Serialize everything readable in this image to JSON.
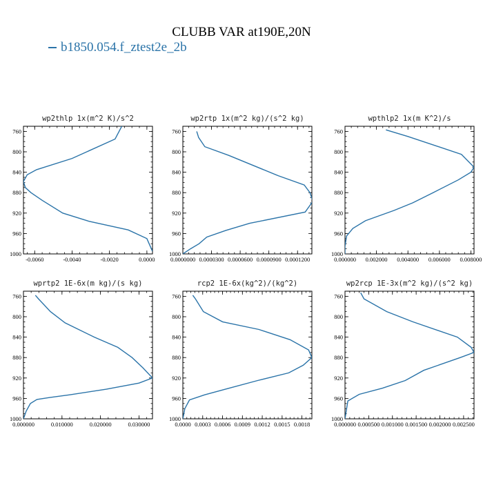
{
  "title": "CLUBB VAR at190E,20N",
  "legend": {
    "name": "b1850.054.f_ztest2e_2b",
    "color": "#2a73a8"
  },
  "chart_data": [
    {
      "type": "line",
      "title": "wp2thlp  1x(m^2 K)/s^2",
      "xlim": [
        -0.0066,
        0.0003
      ],
      "ylim": [
        750,
        1000
      ],
      "y_inverted": true,
      "xticks": [
        -0.006,
        -0.004,
        -0.002,
        0.0
      ],
      "xtick_labels": [
        "-0.0060",
        "-0.0040",
        "-0.0020",
        "0.0000"
      ],
      "yticks": [
        760,
        800,
        840,
        880,
        920,
        960,
        1000
      ],
      "x": [
        -0.0013,
        -0.0017,
        -0.004,
        -0.0059,
        -0.0064,
        -0.0066,
        -0.0065,
        -0.0062,
        -0.0056,
        -0.0045,
        -0.0031,
        -0.001,
        0.0,
        0.0003
      ],
      "y": [
        747,
        775,
        813,
        835,
        845,
        858,
        870,
        880,
        895,
        920,
        936,
        953,
        970,
        995
      ]
    },
    {
      "type": "line",
      "title": "wp2rtp  1x(m^2 kg)/(s^2 kg)",
      "xlim": [
        0.0,
        0.000135
      ],
      "ylim": [
        750,
        1000
      ],
      "y_inverted": true,
      "xticks": [
        0.0,
        3e-05,
        6e-05,
        9e-05,
        0.00012
      ],
      "xtick_labels": [
        "0.0000000",
        "0.0000300",
        "0.0000600",
        "0.0000900",
        "0.0001200"
      ],
      "yticks": [
        760,
        800,
        840,
        880,
        920,
        960,
        1000
      ],
      "x": [
        1.45e-05,
        1.65e-05,
        2.3e-05,
        4.8e-05,
        0.0001,
        0.000127,
        0.000133,
        0.000136,
        0.000128,
        7e-05,
        4.5e-05,
        2.5e-05,
        1.7e-05,
        8e-06,
        0.0
      ],
      "y": [
        760,
        772,
        790,
        807,
        847,
        865,
        880,
        897,
        918,
        940,
        954,
        967,
        980,
        990,
        1000
      ]
    },
    {
      "type": "line",
      "title": "wpthlp2  1x(m K^2)/s",
      "xlim": [
        0.0,
        0.0082
      ],
      "ylim": [
        750,
        1000
      ],
      "y_inverted": true,
      "xticks": [
        0.0,
        0.002,
        0.004,
        0.006,
        0.008
      ],
      "xtick_labels": [
        "0.000000",
        "0.002000",
        "0.004000",
        "0.006000",
        "0.008000"
      ],
      "yticks": [
        760,
        800,
        840,
        880,
        920,
        960,
        1000
      ],
      "x": [
        0.0026,
        0.004,
        0.0074,
        0.0082,
        0.008,
        0.0072,
        0.0056,
        0.0043,
        0.0031,
        0.0013,
        0.0005,
        0.0001,
        0.0,
        0.0
      ],
      "y": [
        757,
        770,
        805,
        830,
        840,
        855,
        880,
        900,
        915,
        935,
        950,
        965,
        985,
        1000
      ]
    },
    {
      "type": "line",
      "title": "wprtp2  1E-6x(m kg)/(s kg)",
      "xlim": [
        0.0,
        0.0335
      ],
      "ylim": [
        750,
        1000
      ],
      "y_inverted": true,
      "xticks": [
        0.0,
        0.01,
        0.02,
        0.03
      ],
      "xtick_labels": [
        "0.000000",
        "0.010000",
        "0.020000",
        "0.030000"
      ],
      "yticks": [
        760,
        800,
        840,
        880,
        920,
        960,
        1000
      ],
      "x": [
        0.0031,
        0.0039,
        0.007,
        0.0108,
        0.0184,
        0.0245,
        0.0282,
        0.031,
        0.0335,
        0.03,
        0.0215,
        0.012,
        0.007,
        0.0035,
        0.0018,
        0.0007,
        0.0
      ],
      "y": [
        758,
        765,
        790,
        812,
        840,
        860,
        880,
        900,
        920,
        930,
        942,
        953,
        958,
        962,
        970,
        985,
        1000
      ]
    },
    {
      "type": "line",
      "title": "rcp2  1E-6x(kg^2)/(kg^2)",
      "xlim": [
        0.0,
        0.00195
      ],
      "ylim": [
        750,
        1000
      ],
      "y_inverted": true,
      "xticks": [
        0.0,
        0.0003,
        0.0006,
        0.0009,
        0.0012,
        0.0015,
        0.0018
      ],
      "xtick_labels": [
        "0.0000",
        "0.0003",
        "0.0006",
        "0.0009",
        "0.0012",
        "0.0015",
        "0.0018"
      ],
      "yticks": [
        760,
        800,
        840,
        880,
        920,
        960,
        1000
      ],
      "x": [
        0.00015,
        0.00019,
        0.00031,
        0.0006,
        0.00115,
        0.00162,
        0.0019,
        0.00195,
        0.00182,
        0.0016,
        0.00113,
        0.0007,
        0.00033,
        0.0001,
        3e-05,
        0.0
      ],
      "y": [
        758,
        765,
        790,
        810,
        825,
        845,
        865,
        880,
        895,
        910,
        925,
        940,
        953,
        963,
        980,
        1000
      ]
    },
    {
      "type": "line",
      "title": "wp2rcp  1E-3x(m^2 kg)/(s^2 kg)",
      "xlim": [
        0.0,
        0.00272
      ],
      "ylim": [
        750,
        1000
      ],
      "y_inverted": true,
      "xticks": [
        0.0,
        0.0005,
        0.001,
        0.0015,
        0.002,
        0.0025
      ],
      "xtick_labels": [
        "0.000000",
        "0.000500",
        "0.001000",
        "0.001500",
        "0.002000",
        "0.002500"
      ],
      "yticks": [
        760,
        800,
        840,
        880,
        920,
        960,
        1000
      ],
      "x": [
        0.00033,
        0.0004,
        0.00088,
        0.00143,
        0.00237,
        0.00266,
        0.00272,
        0.00243,
        0.00166,
        0.00127,
        0.00079,
        0.0003,
        6e-05,
        0.0
      ],
      "y": [
        753,
        765,
        790,
        810,
        840,
        860,
        870,
        880,
        905,
        925,
        940,
        952,
        965,
        1000
      ]
    }
  ]
}
